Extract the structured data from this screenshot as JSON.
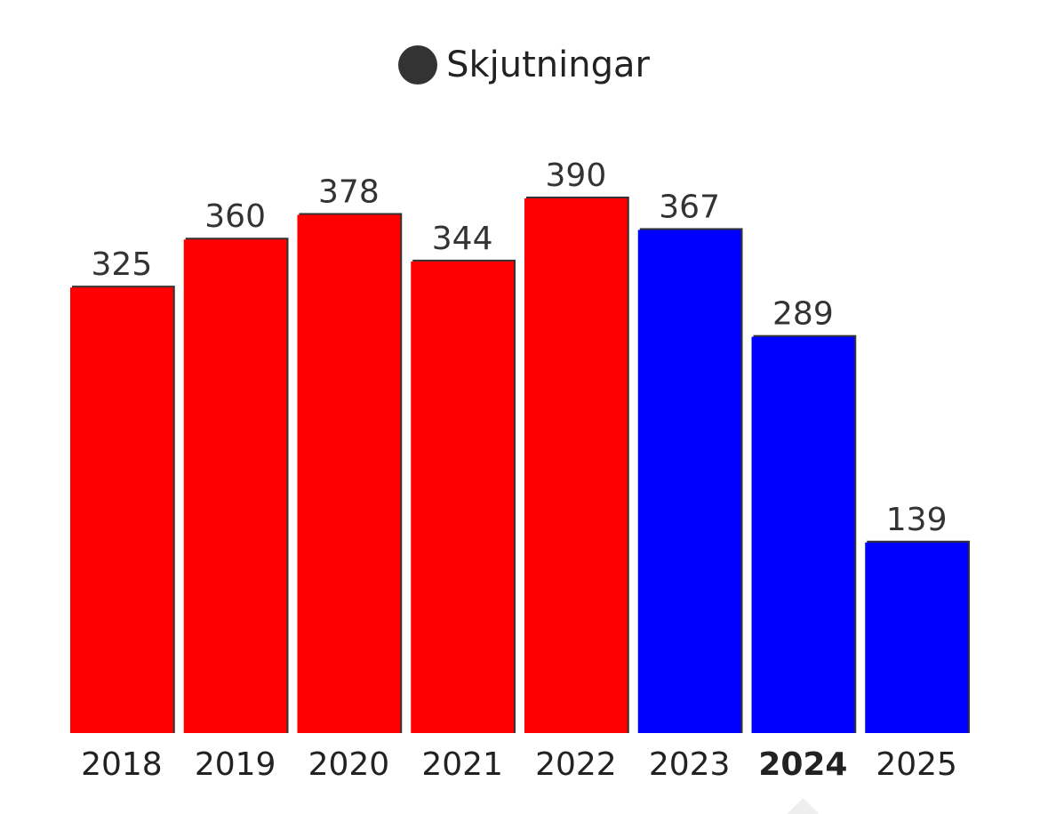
{
  "legend": {
    "label": "Skjutningar",
    "color": "#333333"
  },
  "chart_data": {
    "type": "bar",
    "title": "",
    "xlabel": "",
    "ylabel": "",
    "ylim": [
      0,
      390
    ],
    "categories": [
      "2018",
      "2019",
      "2020",
      "2021",
      "2022",
      "2023",
      "2024",
      "2025"
    ],
    "series": [
      {
        "name": "Skjutningar",
        "values": [
          325,
          360,
          378,
          344,
          390,
          367,
          289,
          139
        ]
      }
    ],
    "colors": [
      "#ff0000",
      "#ff0000",
      "#ff0000",
      "#ff0000",
      "#ff0000",
      "#0000ff",
      "#0000ff",
      "#0000ff"
    ],
    "highlighted_category": "2024",
    "grid": false,
    "legend_position": "top-center"
  }
}
